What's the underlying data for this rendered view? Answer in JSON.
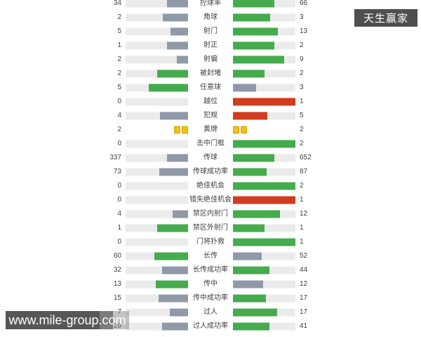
{
  "chart_data": {
    "type": "bar",
    "orientation": "horizontal-paired",
    "title": "",
    "categories": [
      "控球率",
      "角球",
      "射门",
      "射正",
      "射偏",
      "被封堵",
      "任意球",
      "越位",
      "犯规",
      "黄牌",
      "击中门框",
      "传球",
      "传球成功率",
      "绝佳机会",
      "错失绝佳机会",
      "禁区内射门",
      "禁区外射门",
      "门将扑救",
      "长传",
      "长传成功率",
      "传中",
      "传中成功率",
      "过人",
      "过人成功率"
    ],
    "series": [
      {
        "name": "home",
        "values": [
          34,
          2,
          5,
          1,
          2,
          2,
          5,
          0,
          4,
          2,
          0,
          337,
          73,
          0,
          0,
          4,
          1,
          0,
          60,
          32,
          13,
          15,
          7,
          29
        ]
      },
      {
        "name": "away",
        "values": [
          66,
          3,
          13,
          2,
          9,
          2,
          3,
          1,
          5,
          2,
          2,
          652,
          87,
          2,
          1,
          12,
          1,
          1,
          52,
          44,
          12,
          17,
          17,
          41
        ]
      }
    ],
    "legend": "none",
    "layout_note": "bar length = value share of row total; home bars right-anchored, away bars left-anchored; green = advantaged side, slate-gray = other side, red = negative stats (offside/fouls/missed big chances), yellow card icons for 黄牌 row"
  },
  "colors": {
    "green": "#45ab4d",
    "gray": "#8f99a8",
    "red": "#d23c20",
    "track": "#ebebeb",
    "yellow": "#f2c017",
    "text": "#3e3e3e",
    "badge_bg": "#4f4f4f",
    "watermark_bg": "#575757"
  },
  "badge": {
    "text": "天生赢家"
  },
  "watermark": {
    "text": "www.mile-group.com"
  },
  "stats": {
    "rows": [
      {
        "label": "控球率",
        "left": {
          "value": "34",
          "pct": 34.0,
          "color": "gray"
        },
        "right": {
          "value": "66",
          "pct": 66.0,
          "color": "green"
        }
      },
      {
        "label": "角球",
        "left": {
          "value": "2",
          "pct": 40.0,
          "color": "gray"
        },
        "right": {
          "value": "3",
          "pct": 60.0,
          "color": "green"
        }
      },
      {
        "label": "射门",
        "left": {
          "value": "5",
          "pct": 27.8,
          "color": "gray"
        },
        "right": {
          "value": "13",
          "pct": 72.2,
          "color": "green"
        }
      },
      {
        "label": "射正",
        "left": {
          "value": "1",
          "pct": 33.3,
          "color": "gray"
        },
        "right": {
          "value": "2",
          "pct": 66.7,
          "color": "green"
        }
      },
      {
        "label": "射偏",
        "left": {
          "value": "2",
          "pct": 18.2,
          "color": "gray"
        },
        "right": {
          "value": "9",
          "pct": 81.8,
          "color": "green"
        }
      },
      {
        "label": "被封堵",
        "left": {
          "value": "2",
          "pct": 50.0,
          "color": "green"
        },
        "right": {
          "value": "2",
          "pct": 50.0,
          "color": "green"
        }
      },
      {
        "label": "任意球",
        "left": {
          "value": "5",
          "pct": 62.5,
          "color": "green"
        },
        "right": {
          "value": "3",
          "pct": 37.5,
          "color": "gray"
        }
      },
      {
        "label": "越位",
        "left": {
          "value": "0",
          "pct": 0,
          "color": "gray"
        },
        "right": {
          "value": "1",
          "pct": 100.0,
          "color": "red"
        }
      },
      {
        "label": "犯规",
        "left": {
          "value": "4",
          "pct": 44.4,
          "color": "gray"
        },
        "right": {
          "value": "5",
          "pct": 55.6,
          "color": "red"
        }
      },
      {
        "label": "黄牌",
        "type": "cards",
        "left": {
          "value": "2",
          "cards": 2
        },
        "right": {
          "value": "2",
          "cards": 2
        }
      },
      {
        "label": "击中门框",
        "left": {
          "value": "0",
          "pct": 0,
          "color": "gray"
        },
        "right": {
          "value": "2",
          "pct": 100.0,
          "color": "green"
        }
      },
      {
        "label": "传球",
        "left": {
          "value": "337",
          "pct": 34.1,
          "color": "gray"
        },
        "right": {
          "value": "652",
          "pct": 65.9,
          "color": "green"
        }
      },
      {
        "label": "传球成功率",
        "left": {
          "value": "73",
          "pct": 45.6,
          "color": "gray"
        },
        "right": {
          "value": "87",
          "pct": 54.4,
          "color": "green"
        }
      },
      {
        "label": "绝佳机会",
        "left": {
          "value": "0",
          "pct": 0,
          "color": "gray"
        },
        "right": {
          "value": "2",
          "pct": 100.0,
          "color": "green"
        }
      },
      {
        "label": "错失绝佳机会",
        "left": {
          "value": "0",
          "pct": 0,
          "color": "gray"
        },
        "right": {
          "value": "1",
          "pct": 100.0,
          "color": "red"
        }
      },
      {
        "label": "禁区内射门",
        "left": {
          "value": "4",
          "pct": 25.0,
          "color": "gray"
        },
        "right": {
          "value": "12",
          "pct": 75.0,
          "color": "green"
        }
      },
      {
        "label": "禁区外射门",
        "left": {
          "value": "1",
          "pct": 50.0,
          "color": "green"
        },
        "right": {
          "value": "1",
          "pct": 50.0,
          "color": "green"
        }
      },
      {
        "label": "门将扑救",
        "left": {
          "value": "0",
          "pct": 0,
          "color": "gray"
        },
        "right": {
          "value": "1",
          "pct": 100.0,
          "color": "green"
        }
      },
      {
        "label": "长传",
        "left": {
          "value": "60",
          "pct": 53.6,
          "color": "green"
        },
        "right": {
          "value": "52",
          "pct": 46.4,
          "color": "gray"
        }
      },
      {
        "label": "长传成功率",
        "left": {
          "value": "32",
          "pct": 42.1,
          "color": "gray"
        },
        "right": {
          "value": "44",
          "pct": 57.9,
          "color": "green"
        }
      },
      {
        "label": "传中",
        "left": {
          "value": "13",
          "pct": 52.0,
          "color": "green"
        },
        "right": {
          "value": "12",
          "pct": 48.0,
          "color": "gray"
        }
      },
      {
        "label": "传中成功率",
        "left": {
          "value": "15",
          "pct": 46.9,
          "color": "gray"
        },
        "right": {
          "value": "17",
          "pct": 53.1,
          "color": "green"
        }
      },
      {
        "label": "过人",
        "left": {
          "value": "7",
          "pct": 29.2,
          "color": "gray"
        },
        "right": {
          "value": "17",
          "pct": 70.8,
          "color": "green"
        }
      },
      {
        "label": "过人成功率",
        "left": {
          "value": "29",
          "pct": 41.4,
          "color": "gray"
        },
        "right": {
          "value": "41",
          "pct": 58.6,
          "color": "green"
        }
      }
    ]
  }
}
